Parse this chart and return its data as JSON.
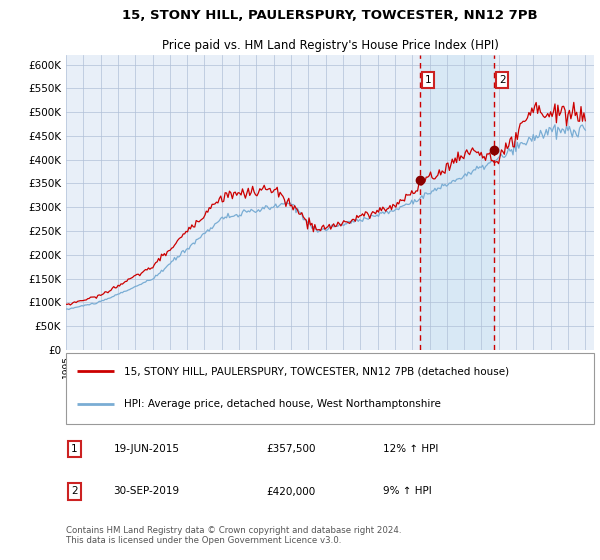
{
  "title": "15, STONY HILL, PAULERSPURY, TOWCESTER, NN12 7PB",
  "subtitle": "Price paid vs. HM Land Registry's House Price Index (HPI)",
  "ylim": [
    0,
    620000
  ],
  "red_line_color": "#cc0000",
  "blue_line_color": "#7aadd4",
  "blue_fill_color": "#d8e8f5",
  "background_color": "#e8eff8",
  "grid_color": "#b0c0d8",
  "dashed_line_color": "#cc0000",
  "marker_color": "#880000",
  "sale1_date": 2015.47,
  "sale1_price": 357500,
  "sale2_date": 2019.75,
  "sale2_price": 420000,
  "legend_text1": "15, STONY HILL, PAULERSPURY, TOWCESTER, NN12 7PB (detached house)",
  "legend_text2": "HPI: Average price, detached house, West Northamptonshire",
  "table_row1": [
    "1",
    "19-JUN-2015",
    "£357,500",
    "12% ↑ HPI"
  ],
  "table_row2": [
    "2",
    "30-SEP-2019",
    "£420,000",
    "9% ↑ HPI"
  ],
  "footer": "Contains HM Land Registry data © Crown copyright and database right 2024.\nThis data is licensed under the Open Government Licence v3.0.",
  "title_fontsize": 9.5,
  "subtitle_fontsize": 8.5
}
